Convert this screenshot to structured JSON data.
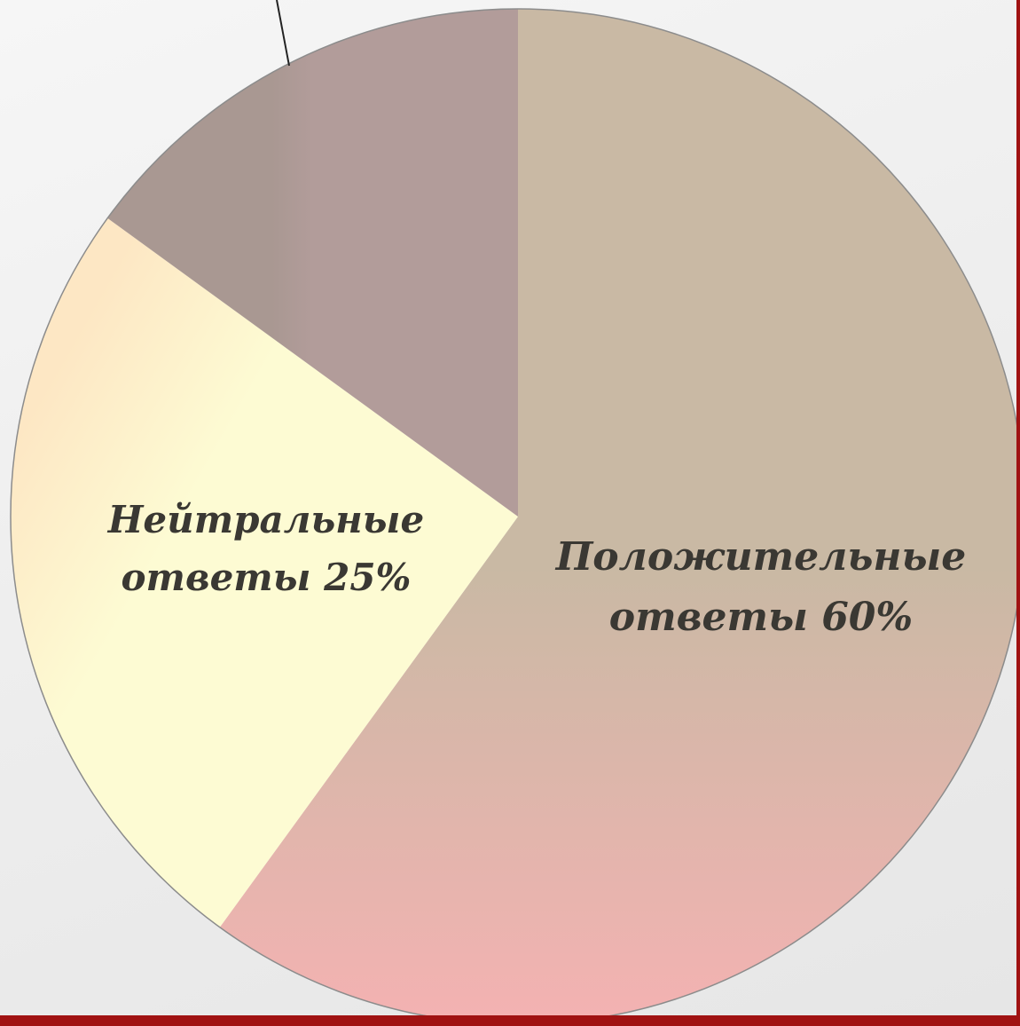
{
  "chart_data": {
    "type": "pie",
    "slices": [
      {
        "label_lines": [
          "Положительные",
          "ответы 60%"
        ],
        "value": 60,
        "color": "#c9b9a4"
      },
      {
        "label_lines": [
          "Нейтральные",
          "ответы 25%"
        ],
        "value": 25,
        "color": "#fdfbd3"
      },
      {
        "label_lines": [],
        "value": 15,
        "color": "#a99892"
      }
    ],
    "start_angle_deg": 0,
    "direction": "clockwise",
    "legend": "none",
    "label_color": "#3a3833",
    "border_color": "#8c8c8c"
  },
  "theme": {
    "background": "#efefef",
    "accent_rule_color": "#a01212"
  }
}
